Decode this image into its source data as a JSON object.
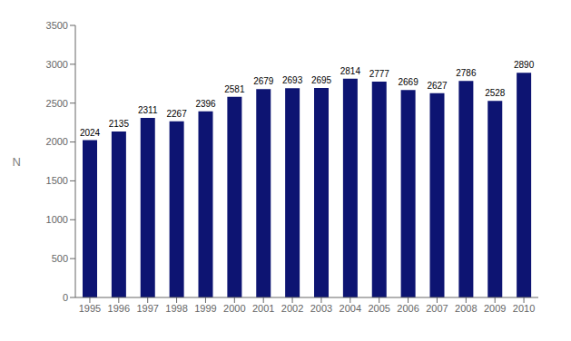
{
  "chart_data": {
    "type": "bar",
    "categories": [
      "1995",
      "1996",
      "1997",
      "1998",
      "1999",
      "2000",
      "2001",
      "2002",
      "2003",
      "2004",
      "2005",
      "2006",
      "2007",
      "2008",
      "2009",
      "2010"
    ],
    "values": [
      2024,
      2135,
      2311,
      2267,
      2396,
      2581,
      2679,
      2693,
      2695,
      2814,
      2777,
      2669,
      2627,
      2786,
      2528,
      2890
    ],
    "color": "#0D1472",
    "ylabel": "N",
    "ylim": [
      0,
      3500
    ],
    "yticks": [
      0,
      500,
      1000,
      1500,
      2000,
      2500,
      3000,
      3500
    ],
    "grid": false,
    "data_labels": true
  }
}
